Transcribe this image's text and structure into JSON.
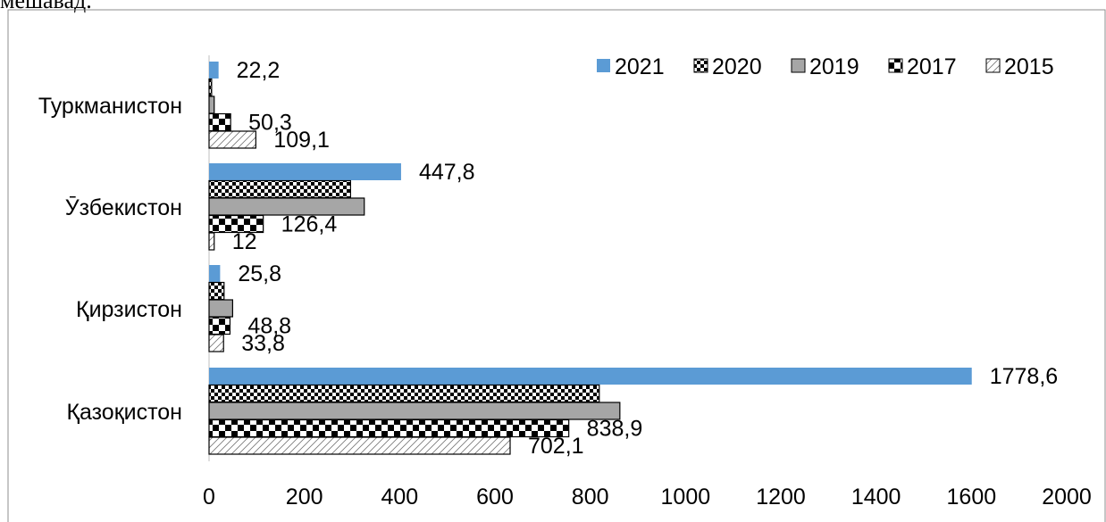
{
  "caption_fragment": "мешавад.",
  "chart_data": {
    "type": "bar",
    "orientation": "horizontal",
    "categories": [
      "Туркманистон",
      "Ӯзбекистон",
      "Қирзистон",
      "Қазоқистон"
    ],
    "series": [
      {
        "name": "2021",
        "values": [
          22.2,
          447.8,
          25.8,
          1778.6
        ],
        "fill": "solid",
        "color": "#5B9BD5"
      },
      {
        "name": "2020",
        "values": [
          6,
          330,
          35,
          910
        ],
        "fill": "checker-small",
        "color": "#000000"
      },
      {
        "name": "2019",
        "values": [
          12,
          362,
          55,
          958
        ],
        "fill": "solid",
        "color": "#A6A6A6"
      },
      {
        "name": "2017",
        "values": [
          50.3,
          126.4,
          48.8,
          838.9
        ],
        "fill": "checker-large",
        "color": "#000000"
      },
      {
        "name": "2015",
        "values": [
          109.1,
          12,
          33.8,
          702.1
        ],
        "fill": "diagonal-hatch",
        "color": "#000000"
      }
    ],
    "data_labels": [
      {
        "category": "Туркманистон",
        "series": "2021",
        "text": "22,2"
      },
      {
        "category": "Туркманистон",
        "series": "2017",
        "text": "50,3"
      },
      {
        "category": "Туркманистон",
        "series": "2015",
        "text": "109,1"
      },
      {
        "category": "Ӯзбекистон",
        "series": "2021",
        "text": "447,8"
      },
      {
        "category": "Ӯзбекистон",
        "series": "2017",
        "text": "126,4"
      },
      {
        "category": "Ӯзбекистон",
        "series": "2015",
        "text": "12"
      },
      {
        "category": "Қирзистон",
        "series": "2021",
        "text": "25,8"
      },
      {
        "category": "Қирзистон",
        "series": "2017",
        "text": "48,8"
      },
      {
        "category": "Қирзистон",
        "series": "2015",
        "text": "33,8"
      },
      {
        "category": "Қазоқистон",
        "series": "2021",
        "text": "1778,6"
      },
      {
        "category": "Қазоқистон",
        "series": "2017",
        "text": "838,9"
      },
      {
        "category": "Қазоқистон",
        "series": "2015",
        "text": "702,1"
      }
    ],
    "x_ticks": [
      "0",
      "200",
      "400",
      "600",
      "800",
      "1000",
      "1200",
      "1400",
      "1600",
      "2000"
    ],
    "xlim": [
      0,
      2000
    ],
    "grid": false,
    "legend_position": "top-right"
  }
}
